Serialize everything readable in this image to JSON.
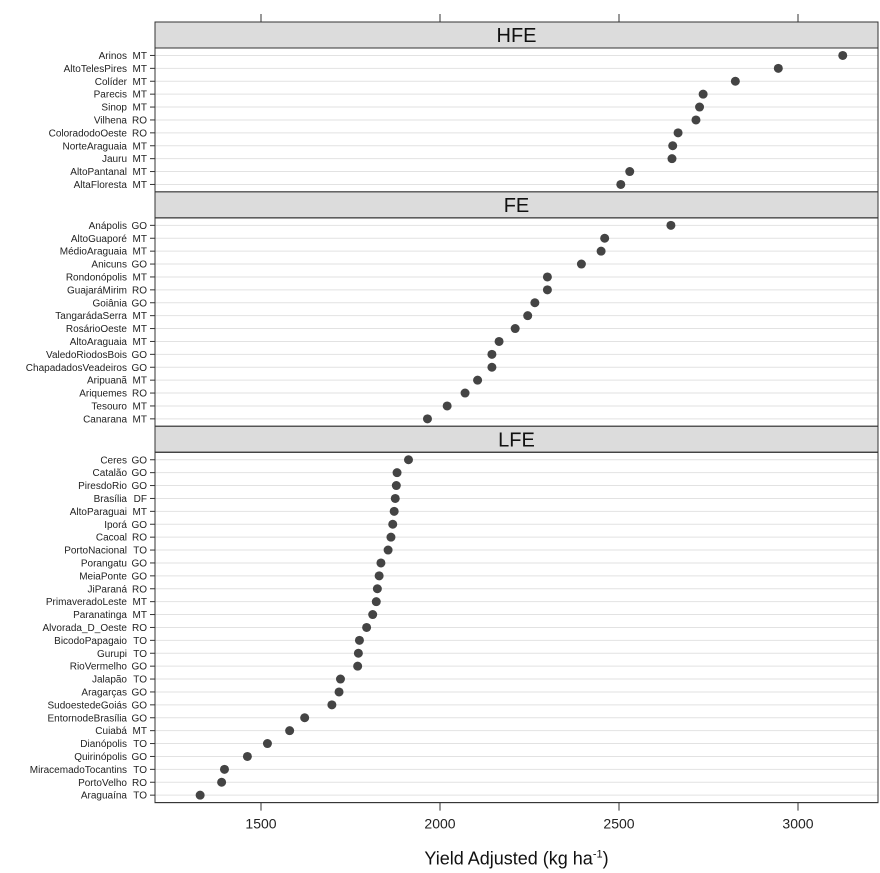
{
  "chart_data": {
    "type": "dot",
    "xlabel": "Yield Adjusted (kg ha",
    "xlabel_sup": "-1",
    "xlabel_close": ")",
    "xlim": [
      1200,
      3200
    ],
    "xticks": [
      1500,
      2000,
      2500,
      3000
    ],
    "xtick_labels": [
      "1500",
      "2000",
      "2500",
      "3000"
    ],
    "grid": true,
    "colors": {
      "point": "#444444",
      "strip": "#dcdcdc",
      "grid": "#e2e2e2",
      "frame": "#333333"
    },
    "panels": [
      {
        "name": "HFE",
        "points": [
          {
            "place": "Arinos",
            "state": "MT",
            "value": 3125
          },
          {
            "place": "AltoTelesPires",
            "state": "MT",
            "value": 2945
          },
          {
            "place": "Colíder",
            "state": "MT",
            "value": 2825
          },
          {
            "place": "Parecis",
            "state": "MT",
            "value": 2735
          },
          {
            "place": "Sinop",
            "state": "MT",
            "value": 2725
          },
          {
            "place": "Vilhena",
            "state": "RO",
            "value": 2715
          },
          {
            "place": "ColoradodoOeste",
            "state": "RO",
            "value": 2665
          },
          {
            "place": "NorteAraguaia",
            "state": "MT",
            "value": 2650
          },
          {
            "place": "Jauru",
            "state": "MT",
            "value": 2648
          },
          {
            "place": "AltoPantanal",
            "state": "MT",
            "value": 2530
          },
          {
            "place": "AltaFloresta",
            "state": "MT",
            "value": 2505
          }
        ]
      },
      {
        "name": "FE",
        "points": [
          {
            "place": "Anápolis",
            "state": "GO",
            "value": 2645
          },
          {
            "place": "AltoGuaporé",
            "state": "MT",
            "value": 2460
          },
          {
            "place": "MédioAraguaia",
            "state": "MT",
            "value": 2450
          },
          {
            "place": "Anicuns",
            "state": "GO",
            "value": 2395
          },
          {
            "place": "Rondonópolis",
            "state": "MT",
            "value": 2300
          },
          {
            "place": "GuajaráMirim",
            "state": "RO",
            "value": 2300
          },
          {
            "place": "Goiânia",
            "state": "GO",
            "value": 2265
          },
          {
            "place": "TangarádaSerra",
            "state": "MT",
            "value": 2245
          },
          {
            "place": "RosárioOeste",
            "state": "MT",
            "value": 2210
          },
          {
            "place": "AltoAraguaia",
            "state": "MT",
            "value": 2165
          },
          {
            "place": "ValedoRiodosBois",
            "state": "GO",
            "value": 2145
          },
          {
            "place": "ChapadadosVeadeiros",
            "state": "GO",
            "value": 2145
          },
          {
            "place": "Aripuanã",
            "state": "MT",
            "value": 2105
          },
          {
            "place": "Ariquemes",
            "state": "RO",
            "value": 2070
          },
          {
            "place": "Tesouro",
            "state": "MT",
            "value": 2020
          },
          {
            "place": "Canarana",
            "state": "MT",
            "value": 1965
          }
        ]
      },
      {
        "name": "LFE",
        "points": [
          {
            "place": "Ceres",
            "state": "GO",
            "value": 1912
          },
          {
            "place": "Catalão",
            "state": "GO",
            "value": 1880
          },
          {
            "place": "PiresdoRio",
            "state": "GO",
            "value": 1878
          },
          {
            "place": "Brasília",
            "state": "DF",
            "value": 1875
          },
          {
            "place": "AltoParaguai",
            "state": "MT",
            "value": 1872
          },
          {
            "place": "Iporá",
            "state": "GO",
            "value": 1868
          },
          {
            "place": "Cacoal",
            "state": "RO",
            "value": 1863
          },
          {
            "place": "PortoNacional",
            "state": "TO",
            "value": 1855
          },
          {
            "place": "Porangatu",
            "state": "GO",
            "value": 1835
          },
          {
            "place": "MeiaPonte",
            "state": "GO",
            "value": 1830
          },
          {
            "place": "JiParaná",
            "state": "RO",
            "value": 1825
          },
          {
            "place": "PrimaveradoLeste",
            "state": "MT",
            "value": 1822
          },
          {
            "place": "Paranatinga",
            "state": "MT",
            "value": 1812
          },
          {
            "place": "Alvorada_D_Oeste",
            "state": "RO",
            "value": 1795
          },
          {
            "place": "BicodoPapagaio",
            "state": "TO",
            "value": 1775
          },
          {
            "place": "Gurupi",
            "state": "TO",
            "value": 1772
          },
          {
            "place": "RioVermelho",
            "state": "GO",
            "value": 1770
          },
          {
            "place": "Jalapão",
            "state": "TO",
            "value": 1722
          },
          {
            "place": "Aragarças",
            "state": "GO",
            "value": 1718
          },
          {
            "place": "SudoestedeGoiás",
            "state": "GO",
            "value": 1698
          },
          {
            "place": "EntornodeBrasília",
            "state": "GO",
            "value": 1622
          },
          {
            "place": "Cuiabá",
            "state": "MT",
            "value": 1580
          },
          {
            "place": "Dianópolis",
            "state": "TO",
            "value": 1518
          },
          {
            "place": "Quirinópolis",
            "state": "GO",
            "value": 1462
          },
          {
            "place": "MiracemadoTocantins",
            "state": "TO",
            "value": 1398
          },
          {
            "place": "PortoVelho",
            "state": "RO",
            "value": 1390
          },
          {
            "place": "Araguaína",
            "state": "TO",
            "value": 1330
          }
        ]
      }
    ]
  }
}
